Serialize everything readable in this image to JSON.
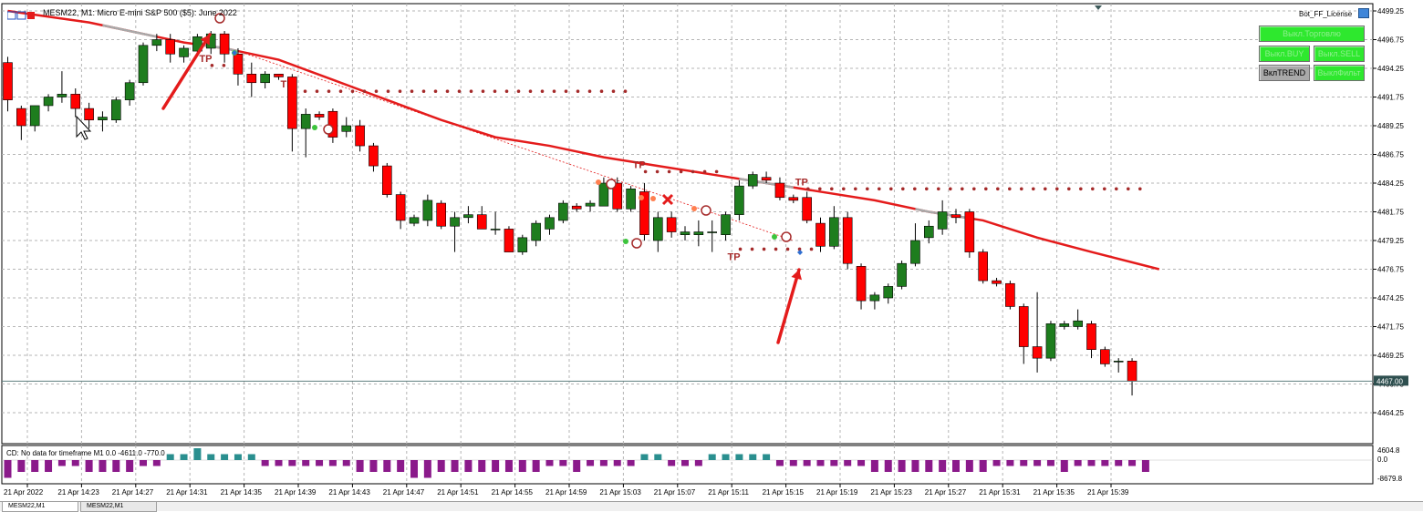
{
  "window": {
    "title": "MESM22, M1: Micro E-mini S&P 500 ($5): June 2022",
    "license_label": "Bot_FF_License",
    "cd_label": "CD: No data for timeframe M1 0.0 -4611.0 -770.0"
  },
  "controls": {
    "trading_toggle": "Выкл.Торговлю",
    "buy_toggle": "Выкл.BUY",
    "sell_toggle": "Выкл.SELL",
    "trend_toggle": "ВклTREND",
    "filter_toggle": "ВыклФильт"
  },
  "tabs": [
    {
      "label": "MESM22,M1"
    },
    {
      "label": "MESM22,M1"
    }
  ],
  "colors": {
    "bull": "#1e7d1e",
    "bear": "#ff0000",
    "grid": "#b5b5b5",
    "ma": "#e41b1b",
    "ma_flat": "#a9a9a9",
    "tp_dots": "#a52a2a",
    "arrow": "#e41b1b",
    "cd_pos": "#2a8f8f",
    "cd_neg": "#8b1a8b",
    "price_line": "#5f7f7f"
  },
  "chart_data": {
    "type": "candlestick",
    "symbol": "MESM22",
    "timeframe": "M1",
    "current_price": "4467.00",
    "ylim": [
      4462.75,
      4500.25
    ],
    "price_ticks": [
      "4499.25",
      "4496.75",
      "4494.25",
      "4491.75",
      "4489.25",
      "4486.75",
      "4484.25",
      "4481.75",
      "4479.25",
      "4476.75",
      "4474.25",
      "4471.75",
      "4469.25",
      "4466.75",
      "4464.25"
    ],
    "time_ticks": [
      "21 Apr 2022",
      "21 Apr 14:23",
      "21 Apr 14:27",
      "21 Apr 14:31",
      "21 Apr 14:35",
      "21 Apr 14:39",
      "21 Apr 14:43",
      "21 Apr 14:47",
      "21 Apr 14:51",
      "21 Apr 14:55",
      "21 Apr 14:59",
      "21 Apr 15:03",
      "21 Apr 15:07",
      "21 Apr 15:11",
      "21 Apr 15:15",
      "21 Apr 15:19",
      "21 Apr 15:23",
      "21 Apr 15:27",
      "21 Apr 15:31",
      "21 Apr 15:35",
      "21 Apr 15:39"
    ],
    "candles": [
      {
        "o": 4494.75,
        "h": 4495.25,
        "l": 4490.5,
        "c": 4491.5
      },
      {
        "o": 4490.75,
        "h": 4491.0,
        "l": 4488.0,
        "c": 4489.25
      },
      {
        "o": 4489.25,
        "h": 4491.0,
        "l": 4488.75,
        "c": 4491.0
      },
      {
        "o": 4491.0,
        "h": 4492.0,
        "l": 4490.5,
        "c": 4491.75
      },
      {
        "o": 4491.75,
        "h": 4494.0,
        "l": 4491.25,
        "c": 4492.0
      },
      {
        "o": 4492.0,
        "h": 4492.5,
        "l": 4490.0,
        "c": 4490.75
      },
      {
        "o": 4490.75,
        "h": 4491.25,
        "l": 4489.0,
        "c": 4489.75
      },
      {
        "o": 4489.75,
        "h": 4490.5,
        "l": 4488.75,
        "c": 4490.0
      },
      {
        "o": 4489.75,
        "h": 4491.75,
        "l": 4489.5,
        "c": 4491.5
      },
      {
        "o": 4491.5,
        "h": 4493.25,
        "l": 4491.0,
        "c": 4493.0
      },
      {
        "o": 4493.0,
        "h": 4496.5,
        "l": 4492.75,
        "c": 4496.25
      },
      {
        "o": 4496.25,
        "h": 4497.25,
        "l": 4495.75,
        "c": 4496.75
      },
      {
        "o": 4496.75,
        "h": 4497.25,
        "l": 4494.75,
        "c": 4495.5
      },
      {
        "o": 4495.25,
        "h": 4496.25,
        "l": 4494.75,
        "c": 4496.0
      },
      {
        "o": 4495.75,
        "h": 4497.25,
        "l": 4495.5,
        "c": 4497.0
      },
      {
        "o": 4496.0,
        "h": 4497.5,
        "l": 4495.5,
        "c": 4497.25
      },
      {
        "o": 4497.25,
        "h": 4497.5,
        "l": 4494.75,
        "c": 4495.5
      },
      {
        "o": 4495.5,
        "h": 4496.0,
        "l": 4492.75,
        "c": 4493.75
      },
      {
        "o": 4493.75,
        "h": 4494.75,
        "l": 4491.75,
        "c": 4493.0
      },
      {
        "o": 4493.0,
        "h": 4494.0,
        "l": 4492.5,
        "c": 4493.75
      },
      {
        "o": 4493.75,
        "h": 4493.75,
        "l": 4493.25,
        "c": 4493.5
      },
      {
        "o": 4493.5,
        "h": 4493.75,
        "l": 4487.0,
        "c": 4489.0
      },
      {
        "o": 4489.0,
        "h": 4490.75,
        "l": 4486.5,
        "c": 4490.25
      },
      {
        "o": 4490.25,
        "h": 4490.5,
        "l": 4489.75,
        "c": 4490.0
      },
      {
        "o": 4490.5,
        "h": 4490.75,
        "l": 4487.75,
        "c": 4488.25
      },
      {
        "o": 4488.75,
        "h": 4490.0,
        "l": 4488.25,
        "c": 4489.25
      },
      {
        "o": 4489.25,
        "h": 4489.75,
        "l": 4487.0,
        "c": 4487.5
      },
      {
        "o": 4487.5,
        "h": 4487.75,
        "l": 4485.25,
        "c": 4485.75
      },
      {
        "o": 4485.75,
        "h": 4486.0,
        "l": 4483.0,
        "c": 4483.25
      },
      {
        "o": 4483.25,
        "h": 4483.5,
        "l": 4480.25,
        "c": 4481.0
      },
      {
        "o": 4480.75,
        "h": 4481.5,
        "l": 4480.5,
        "c": 4481.25
      },
      {
        "o": 4481.0,
        "h": 4483.25,
        "l": 4480.5,
        "c": 4482.75
      },
      {
        "o": 4482.5,
        "h": 4482.75,
        "l": 4480.25,
        "c": 4480.5
      },
      {
        "o": 4480.5,
        "h": 4481.75,
        "l": 4478.25,
        "c": 4481.25
      },
      {
        "o": 4481.25,
        "h": 4482.25,
        "l": 4480.75,
        "c": 4481.5
      },
      {
        "o": 4481.5,
        "h": 4482.25,
        "l": 4480.25,
        "c": 4480.25
      },
      {
        "o": 4480.25,
        "h": 4481.75,
        "l": 4479.75,
        "c": 4480.25
      },
      {
        "o": 4480.25,
        "h": 4480.5,
        "l": 4478.25,
        "c": 4478.25
      },
      {
        "o": 4478.25,
        "h": 4479.75,
        "l": 4478.0,
        "c": 4479.5
      },
      {
        "o": 4479.25,
        "h": 4481.0,
        "l": 4478.75,
        "c": 4480.75
      },
      {
        "o": 4480.25,
        "h": 4481.5,
        "l": 4479.75,
        "c": 4481.25
      },
      {
        "o": 4481.0,
        "h": 4482.75,
        "l": 4480.75,
        "c": 4482.5
      },
      {
        "o": 4482.25,
        "h": 4482.5,
        "l": 4481.75,
        "c": 4482.0
      },
      {
        "o": 4482.25,
        "h": 4482.75,
        "l": 4481.75,
        "c": 4482.5
      },
      {
        "o": 4482.25,
        "h": 4484.75,
        "l": 4482.25,
        "c": 4484.25
      },
      {
        "o": 4484.25,
        "h": 4484.75,
        "l": 4481.75,
        "c": 4482.0
      },
      {
        "o": 4482.0,
        "h": 4484.0,
        "l": 4481.75,
        "c": 4483.75
      },
      {
        "o": 4483.5,
        "h": 4484.25,
        "l": 4479.25,
        "c": 4479.75
      },
      {
        "o": 4479.25,
        "h": 4481.75,
        "l": 4478.25,
        "c": 4481.25
      },
      {
        "o": 4481.25,
        "h": 4481.75,
        "l": 4479.5,
        "c": 4480.0
      },
      {
        "o": 4479.75,
        "h": 4480.5,
        "l": 4479.25,
        "c": 4480.0
      },
      {
        "o": 4479.75,
        "h": 4481.0,
        "l": 4478.75,
        "c": 4480.0
      },
      {
        "o": 4480.0,
        "h": 4481.0,
        "l": 4478.25,
        "c": 4480.0
      },
      {
        "o": 4479.75,
        "h": 4481.75,
        "l": 4479.25,
        "c": 4481.5
      },
      {
        "o": 4481.5,
        "h": 4484.5,
        "l": 4481.0,
        "c": 4484.0
      },
      {
        "o": 4484.0,
        "h": 4485.25,
        "l": 4483.75,
        "c": 4485.0
      },
      {
        "o": 4484.75,
        "h": 4485.25,
        "l": 4484.25,
        "c": 4484.5
      },
      {
        "o": 4484.25,
        "h": 4484.75,
        "l": 4482.75,
        "c": 4483.0
      },
      {
        "o": 4483.0,
        "h": 4483.25,
        "l": 4482.5,
        "c": 4482.75
      },
      {
        "o": 4483.0,
        "h": 4483.5,
        "l": 4480.75,
        "c": 4481.0
      },
      {
        "o": 4480.75,
        "h": 4481.25,
        "l": 4478.25,
        "c": 4478.75
      },
      {
        "o": 4478.75,
        "h": 4482.25,
        "l": 4478.5,
        "c": 4481.25
      },
      {
        "o": 4481.25,
        "h": 4481.75,
        "l": 4476.75,
        "c": 4477.25
      },
      {
        "o": 4477.0,
        "h": 4477.25,
        "l": 4473.25,
        "c": 4474.0
      },
      {
        "o": 4474.0,
        "h": 4474.75,
        "l": 4473.25,
        "c": 4474.5
      },
      {
        "o": 4474.25,
        "h": 4475.5,
        "l": 4473.75,
        "c": 4475.25
      },
      {
        "o": 4475.25,
        "h": 4477.5,
        "l": 4475.0,
        "c": 4477.25
      },
      {
        "o": 4477.25,
        "h": 4480.75,
        "l": 4477.0,
        "c": 4479.25
      },
      {
        "o": 4479.5,
        "h": 4481.0,
        "l": 4479.0,
        "c": 4480.5
      },
      {
        "o": 4480.25,
        "h": 4482.75,
        "l": 4479.75,
        "c": 4481.75
      },
      {
        "o": 4481.5,
        "h": 4482.0,
        "l": 4480.75,
        "c": 4481.25
      },
      {
        "o": 4481.75,
        "h": 4482.0,
        "l": 4477.75,
        "c": 4478.25
      },
      {
        "o": 4478.25,
        "h": 4478.5,
        "l": 4475.5,
        "c": 4475.75
      },
      {
        "o": 4475.75,
        "h": 4476.0,
        "l": 4475.25,
        "c": 4475.5
      },
      {
        "o": 4475.5,
        "h": 4475.75,
        "l": 4473.25,
        "c": 4473.5
      },
      {
        "o": 4473.5,
        "h": 4473.75,
        "l": 4468.5,
        "c": 4470.0
      },
      {
        "o": 4470.0,
        "h": 4474.75,
        "l": 4467.75,
        "c": 4469.0
      },
      {
        "o": 4469.0,
        "h": 4472.25,
        "l": 4468.75,
        "c": 4472.0
      },
      {
        "o": 4471.75,
        "h": 4472.25,
        "l": 4471.5,
        "c": 4472.0
      },
      {
        "o": 4471.75,
        "h": 4473.25,
        "l": 4471.5,
        "c": 4472.25
      },
      {
        "o": 4472.0,
        "h": 4472.25,
        "l": 4469.0,
        "c": 4469.75
      },
      {
        "o": 4469.75,
        "h": 4470.0,
        "l": 4468.25,
        "c": 4468.5
      },
      {
        "o": 4468.75,
        "h": 4469.0,
        "l": 4467.75,
        "c": 4468.75
      },
      {
        "o": 4468.75,
        "h": 4469.0,
        "l": 4465.75,
        "c": 4467.0
      }
    ],
    "ma_line": [
      [
        0,
        4499.25
      ],
      [
        6,
        4498.25
      ],
      [
        10,
        4497.25
      ],
      [
        13,
        4496.5
      ],
      [
        16,
        4496.0
      ],
      [
        20,
        4495.0
      ],
      [
        24,
        4493.25
      ],
      [
        28,
        4491.5
      ],
      [
        32,
        4489.75
      ],
      [
        36,
        4488.25
      ],
      [
        40,
        4487.5
      ],
      [
        44,
        4486.5
      ],
      [
        48,
        4485.75
      ],
      [
        52,
        4485.0
      ],
      [
        56,
        4484.25
      ],
      [
        60,
        4483.5
      ],
      [
        64,
        4482.75
      ],
      [
        68,
        4481.75
      ],
      [
        72,
        4481.0
      ],
      [
        76,
        4479.5
      ],
      [
        80,
        4478.25
      ],
      [
        85,
        4476.75
      ]
    ],
    "ma_flat_segments": [
      [
        7,
        11
      ],
      [
        14,
        17
      ],
      [
        54,
        58
      ],
      [
        67,
        71
      ]
    ],
    "tp_levels": [
      {
        "from": 20,
        "to": 46,
        "price": 4492.25,
        "label": "TP"
      },
      {
        "from": 46,
        "to": 53,
        "price": 4485.25,
        "label": "TP"
      },
      {
        "from": 53,
        "to": 60,
        "price": 4478.5,
        "label": "TP"
      },
      {
        "from": 58,
        "to": 84,
        "price": 4483.75,
        "label": "TP"
      },
      {
        "from": 14,
        "to": 17,
        "price": 4494.5,
        "label": "TP"
      }
    ],
    "cd_hist": [
      -3,
      -2,
      -2,
      -2,
      -1,
      -1,
      -2,
      -2,
      -2,
      -2,
      -1,
      -1,
      1,
      1,
      2,
      1,
      1,
      1,
      1,
      -1,
      -1,
      -1,
      -1,
      -1,
      -1,
      -1,
      -2,
      -2,
      -2,
      -2,
      -3,
      -3,
      -2,
      -2,
      -2,
      -2,
      -2,
      -2,
      -2,
      -2,
      -1,
      -1,
      -2,
      -1,
      -1,
      -1,
      -1,
      1,
      1,
      -1,
      -1,
      -1,
      1,
      1,
      1,
      1,
      1,
      -1,
      -1,
      -1,
      -1,
      -1,
      -1,
      -1,
      -2,
      -2,
      -2,
      -2,
      -2,
      -2,
      -2,
      -2,
      -2,
      -1,
      -1,
      -1,
      -1,
      -1,
      -2,
      -1,
      -1,
      -1,
      -1,
      -1,
      -2
    ]
  }
}
